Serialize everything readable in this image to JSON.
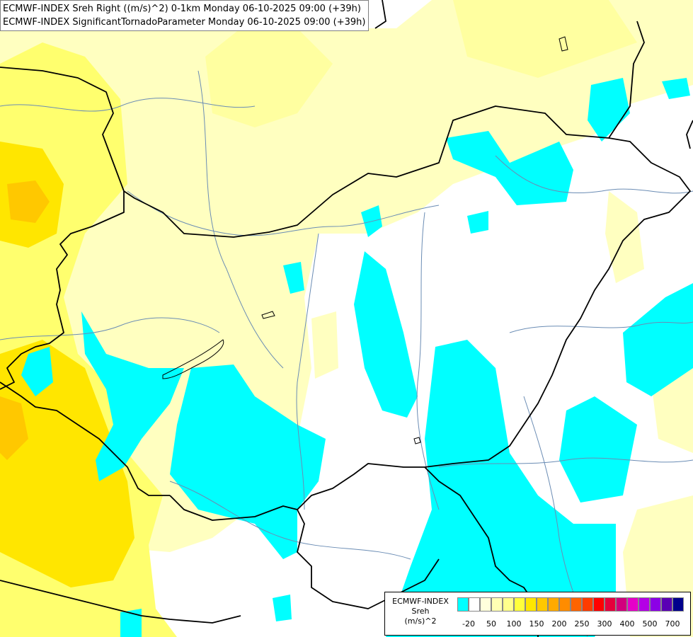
{
  "title": {
    "line1": "ECMWF-INDEX Sreh Right ((m/s)^2) 0-1km Monday 06-10-2025 09:00 (+39h)",
    "line2": "ECMWF-INDEX SignificantTornadoParameter Monday 06-10-2025 09:00 (+39h)"
  },
  "legend": {
    "model": "ECMWF-INDEX",
    "variable": "Sreh",
    "unit": "(m/s)^2",
    "ticks": [
      "-20",
      "50",
      "100",
      "150",
      "200",
      "250",
      "300",
      "400",
      "500",
      "700"
    ],
    "colors": [
      "#00ffff",
      "#ffffff",
      "#ffffdc",
      "#ffffb4",
      "#ffff8c",
      "#ffff3c",
      "#ffe600",
      "#ffc800",
      "#ffaa00",
      "#ff8c00",
      "#ff6400",
      "#ff3c00",
      "#ff0000",
      "#e6003c",
      "#d2007d",
      "#e600c8",
      "#b400e6",
      "#8c00e6",
      "#5a00b4",
      "#00008c"
    ]
  },
  "map_colors": {
    "sea_cyan": "#00ffff",
    "pale_yellow": "#ffffc0",
    "light_yellow": "#ffffa0",
    "yellow": "#ffff6e",
    "bright_yellow": "#ffe600",
    "orange": "#ffc800",
    "border": "#000000",
    "river": "#6a8cb4"
  }
}
